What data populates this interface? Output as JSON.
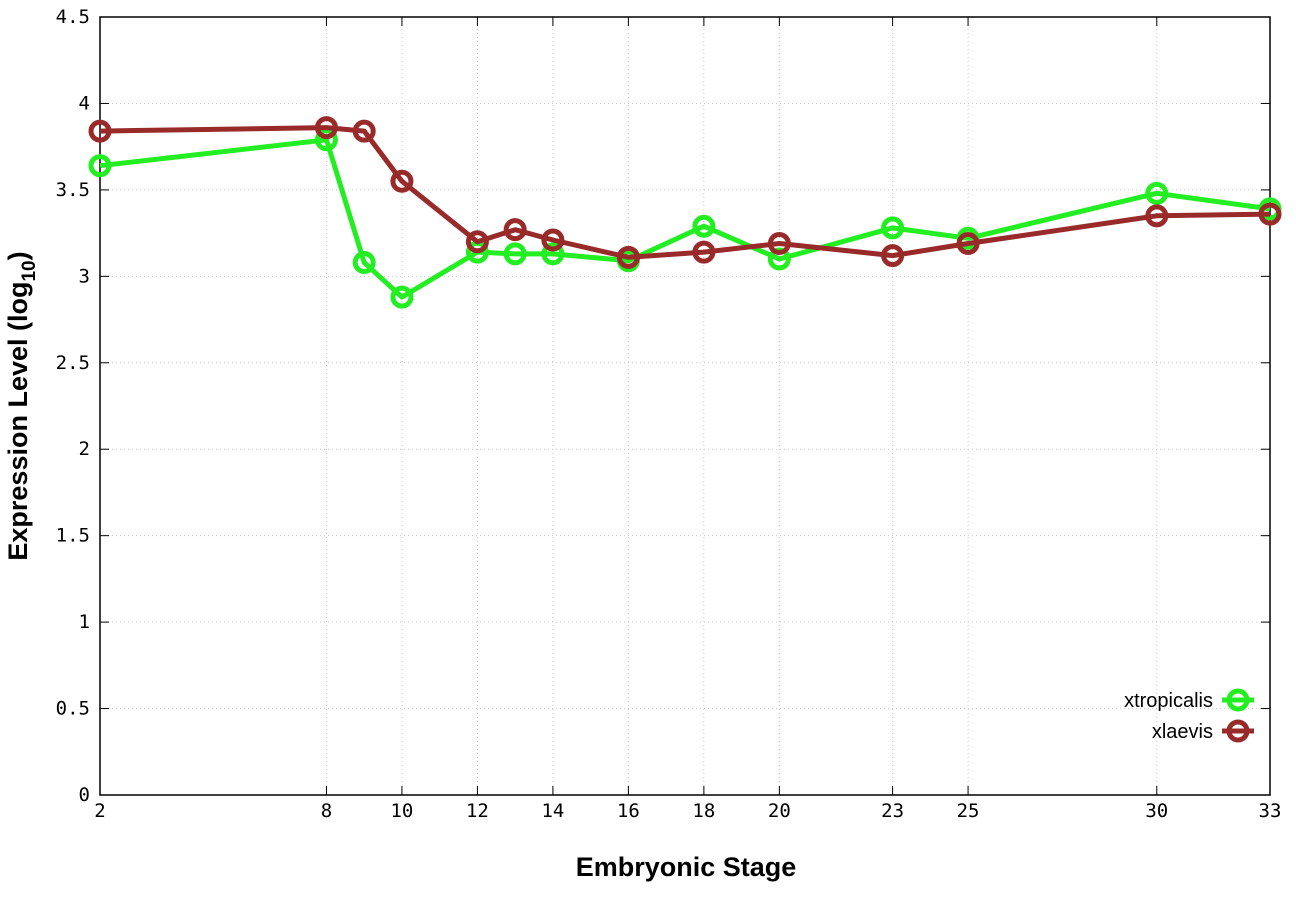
{
  "chart_data": {
    "type": "line",
    "xlabel": "Embryonic Stage",
    "ylabel_main": "Expression Level (log",
    "ylabel_sub": "10",
    "ylabel_close": ")",
    "xlim": [
      2,
      33
    ],
    "ylim": [
      0,
      4.5
    ],
    "grid": true,
    "legend_position": "bottom-right",
    "x_ticks": [
      2,
      8,
      10,
      12,
      14,
      16,
      18,
      20,
      23,
      25,
      30,
      33
    ],
    "x_tick_labels": [
      "2",
      "8",
      "10",
      "12",
      "14",
      "16",
      "18",
      "20",
      "23",
      "25",
      "30",
      "33"
    ],
    "y_ticks": [
      0,
      0.5,
      1,
      1.5,
      2,
      2.5,
      3,
      3.5,
      4,
      4.5
    ],
    "y_tick_labels": [
      "0",
      "0.5",
      "1",
      "1.5",
      "2",
      "2.5",
      "3",
      "3.5",
      "4",
      "4.5"
    ],
    "x": [
      2,
      8,
      9,
      10,
      12,
      13,
      14,
      16,
      18,
      20,
      23,
      25,
      30,
      33
    ],
    "series": [
      {
        "name": "xtropicalis",
        "color": "#22ee22",
        "values": [
          3.64,
          3.79,
          3.08,
          2.88,
          3.14,
          3.13,
          3.13,
          3.09,
          3.29,
          3.1,
          3.28,
          3.22,
          3.48,
          3.39
        ]
      },
      {
        "name": "xlaevis",
        "color": "#992a2a",
        "values": [
          3.84,
          3.86,
          3.84,
          3.55,
          3.2,
          3.27,
          3.21,
          3.11,
          3.14,
          3.19,
          3.12,
          3.19,
          3.35,
          3.36
        ]
      }
    ]
  }
}
